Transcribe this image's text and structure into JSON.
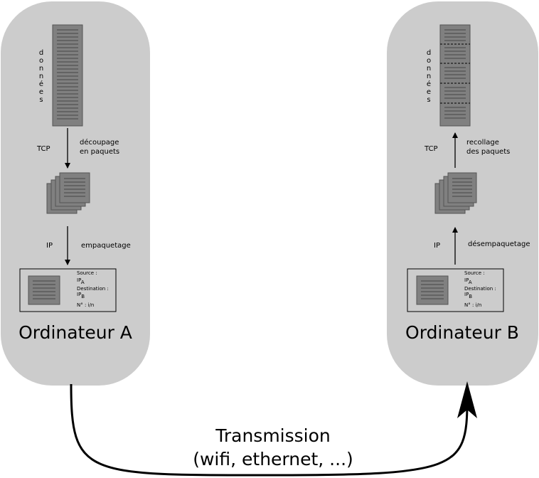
{
  "computer_a": {
    "title": "Ordinateur A",
    "data_label_letters": [
      "d",
      "o",
      "n",
      "n",
      "é",
      "e",
      "s"
    ],
    "protocol_top": "TCP",
    "action_top_line1": "découpage",
    "action_top_line2": "en paquets",
    "protocol_bottom": "IP",
    "action_bottom": "empaquetage",
    "packet": {
      "source_label": "Source :",
      "source_value": "IP",
      "source_sub": "A",
      "dest_label": "Destination :",
      "dest_value": "IP",
      "dest_sub": "B",
      "number": "N° : i/n"
    }
  },
  "computer_b": {
    "title": "Ordinateur B",
    "data_label_letters": [
      "d",
      "o",
      "n",
      "n",
      "é",
      "e",
      "s"
    ],
    "protocol_top": "TCP",
    "action_top_line1": "recollage",
    "action_top_line2": "des paquets",
    "protocol_bottom": "IP",
    "action_bottom": "désempaquetage",
    "packet": {
      "source_label": "Source :",
      "source_value": "IP",
      "source_sub": "A",
      "dest_label": "Destination :",
      "dest_value": "IP",
      "dest_sub": "B",
      "number": "N° : i/n"
    }
  },
  "transmission": {
    "line1": "Transmission",
    "line2": "(wifi, ethernet, ...)"
  },
  "colors": {
    "panel": "#cccccc",
    "block": "#808080",
    "block_border": "#555555"
  }
}
